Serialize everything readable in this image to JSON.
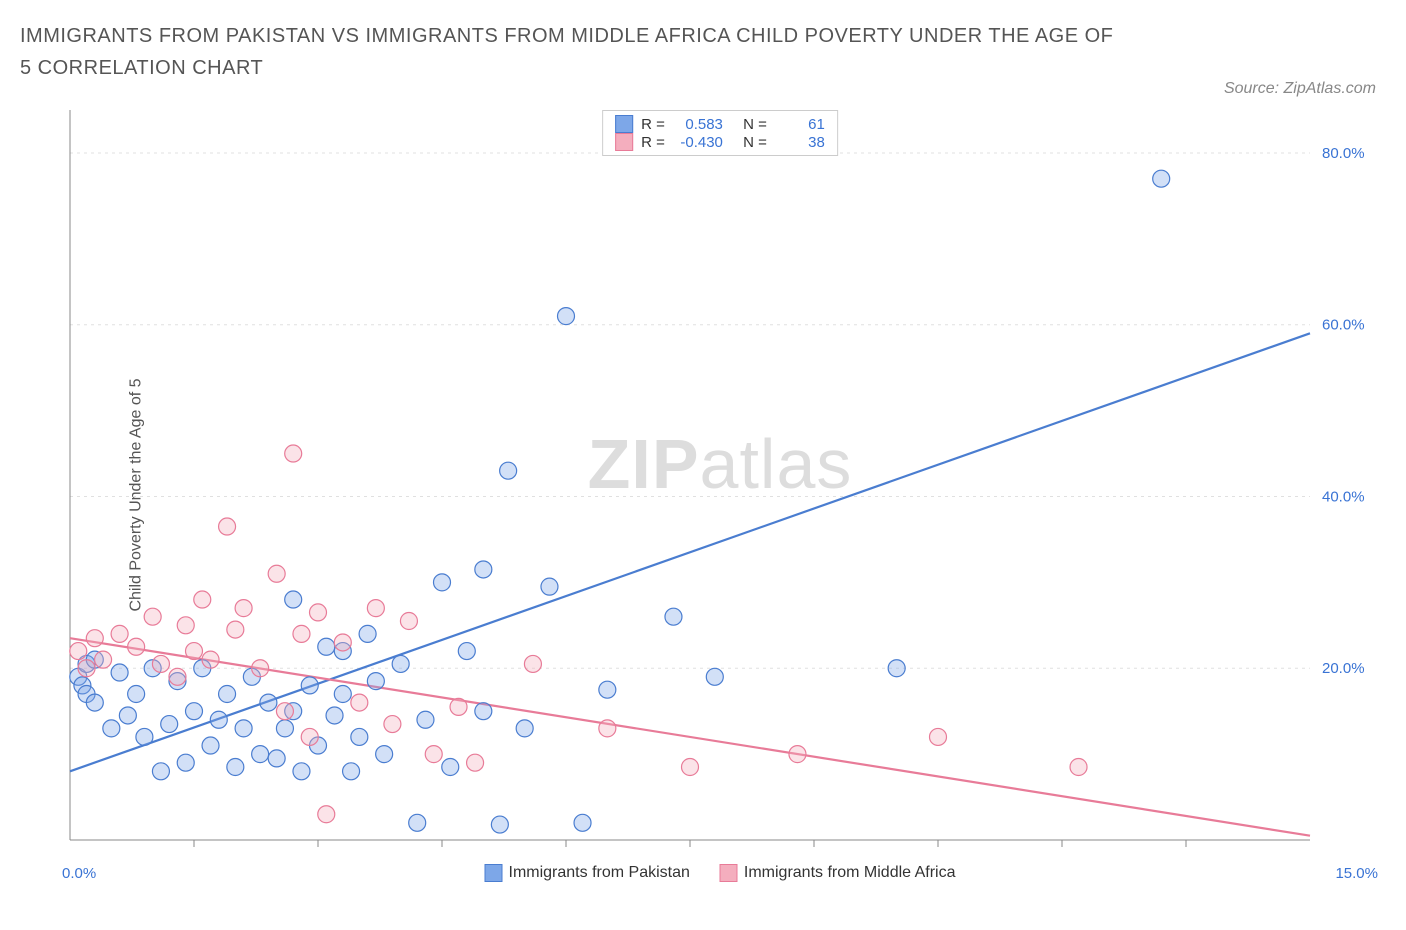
{
  "title": "IMMIGRANTS FROM PAKISTAN VS IMMIGRANTS FROM MIDDLE AFRICA CHILD POVERTY UNDER THE AGE OF 5 CORRELATION CHART",
  "source_label": "Source: ZipAtlas.com",
  "ylabel": "Child Poverty Under the Age of 5",
  "watermark_bold": "ZIP",
  "watermark_rest": "atlas",
  "chart": {
    "type": "scatter",
    "background_color": "#ffffff",
    "grid_color": "#e0e0e0",
    "axis_color": "#888888",
    "xlim": [
      0.0,
      15.0
    ],
    "ylim": [
      0.0,
      85.0
    ],
    "x_ticks_minor": [
      1.5,
      3.0,
      4.5,
      6.0,
      7.5,
      9.0,
      10.5,
      12.0,
      13.5
    ],
    "y_grid": [
      20.0,
      40.0,
      60.0,
      80.0
    ],
    "y_tick_labels": [
      "20.0%",
      "40.0%",
      "60.0%",
      "80.0%"
    ],
    "x_min_label": "0.0%",
    "x_max_label": "15.0%",
    "tick_label_color": "#3973d4",
    "tick_label_fontsize": 15,
    "marker_radius": 8.5,
    "marker_stroke_width": 1.2,
    "marker_fill_opacity": 0.35,
    "trend_line_width": 2.2
  },
  "series": [
    {
      "name": "Immigrants from Pakistan",
      "color_fill": "#7da7e8",
      "color_stroke": "#4a7dd0",
      "r_value": "0.583",
      "n_value": "61",
      "trend": {
        "x1": 0.0,
        "y1": 8.0,
        "x2": 15.0,
        "y2": 59.0
      },
      "points": [
        [
          0.1,
          19.0
        ],
        [
          0.15,
          18.0
        ],
        [
          0.2,
          20.5
        ],
        [
          0.2,
          17.0
        ],
        [
          0.3,
          16.0
        ],
        [
          0.3,
          21.0
        ],
        [
          0.5,
          13.0
        ],
        [
          0.6,
          19.5
        ],
        [
          0.7,
          14.5
        ],
        [
          0.8,
          17.0
        ],
        [
          0.9,
          12.0
        ],
        [
          1.0,
          20.0
        ],
        [
          1.1,
          8.0
        ],
        [
          1.2,
          13.5
        ],
        [
          1.3,
          18.5
        ],
        [
          1.4,
          9.0
        ],
        [
          1.5,
          15.0
        ],
        [
          1.6,
          20.0
        ],
        [
          1.7,
          11.0
        ],
        [
          1.8,
          14.0
        ],
        [
          1.9,
          17.0
        ],
        [
          2.0,
          8.5
        ],
        [
          2.1,
          13.0
        ],
        [
          2.2,
          19.0
        ],
        [
          2.3,
          10.0
        ],
        [
          2.4,
          16.0
        ],
        [
          2.5,
          9.5
        ],
        [
          2.6,
          13.0
        ],
        [
          2.7,
          28.0
        ],
        [
          2.7,
          15.0
        ],
        [
          2.8,
          8.0
        ],
        [
          2.9,
          18.0
        ],
        [
          3.0,
          11.0
        ],
        [
          3.1,
          22.5
        ],
        [
          3.2,
          14.5
        ],
        [
          3.3,
          22.0
        ],
        [
          3.3,
          17.0
        ],
        [
          3.4,
          8.0
        ],
        [
          3.5,
          12.0
        ],
        [
          3.6,
          24.0
        ],
        [
          3.7,
          18.5
        ],
        [
          3.8,
          10.0
        ],
        [
          4.0,
          20.5
        ],
        [
          4.2,
          2.0
        ],
        [
          4.3,
          14.0
        ],
        [
          4.5,
          30.0
        ],
        [
          4.6,
          8.5
        ],
        [
          4.8,
          22.0
        ],
        [
          5.0,
          31.5
        ],
        [
          5.0,
          15.0
        ],
        [
          5.2,
          1.8
        ],
        [
          5.3,
          43.0
        ],
        [
          5.5,
          13.0
        ],
        [
          5.8,
          29.5
        ],
        [
          6.0,
          61.0
        ],
        [
          6.2,
          2.0
        ],
        [
          6.5,
          17.5
        ],
        [
          7.3,
          26.0
        ],
        [
          7.8,
          19.0
        ],
        [
          10.0,
          20.0
        ],
        [
          13.2,
          77.0
        ]
      ]
    },
    {
      "name": "Immigrants from Middle Africa",
      "color_fill": "#f4aebe",
      "color_stroke": "#e87b98",
      "r_value": "-0.430",
      "n_value": "38",
      "trend": {
        "x1": 0.0,
        "y1": 23.5,
        "x2": 15.0,
        "y2": 0.5
      },
      "points": [
        [
          0.1,
          22.0
        ],
        [
          0.2,
          20.0
        ],
        [
          0.3,
          23.5
        ],
        [
          0.4,
          21.0
        ],
        [
          0.6,
          24.0
        ],
        [
          0.8,
          22.5
        ],
        [
          1.0,
          26.0
        ],
        [
          1.1,
          20.5
        ],
        [
          1.3,
          19.0
        ],
        [
          1.4,
          25.0
        ],
        [
          1.5,
          22.0
        ],
        [
          1.6,
          28.0
        ],
        [
          1.7,
          21.0
        ],
        [
          1.9,
          36.5
        ],
        [
          2.0,
          24.5
        ],
        [
          2.1,
          27.0
        ],
        [
          2.3,
          20.0
        ],
        [
          2.5,
          31.0
        ],
        [
          2.6,
          15.0
        ],
        [
          2.7,
          45.0
        ],
        [
          2.8,
          24.0
        ],
        [
          2.9,
          12.0
        ],
        [
          3.0,
          26.5
        ],
        [
          3.1,
          3.0
        ],
        [
          3.3,
          23.0
        ],
        [
          3.5,
          16.0
        ],
        [
          3.7,
          27.0
        ],
        [
          3.9,
          13.5
        ],
        [
          4.1,
          25.5
        ],
        [
          4.4,
          10.0
        ],
        [
          4.7,
          15.5
        ],
        [
          4.9,
          9.0
        ],
        [
          5.6,
          20.5
        ],
        [
          6.5,
          13.0
        ],
        [
          7.5,
          8.5
        ],
        [
          8.8,
          10.0
        ],
        [
          10.5,
          12.0
        ],
        [
          12.2,
          8.5
        ]
      ]
    }
  ],
  "legend_top": {
    "r_label": "R =",
    "n_label": "N ="
  }
}
